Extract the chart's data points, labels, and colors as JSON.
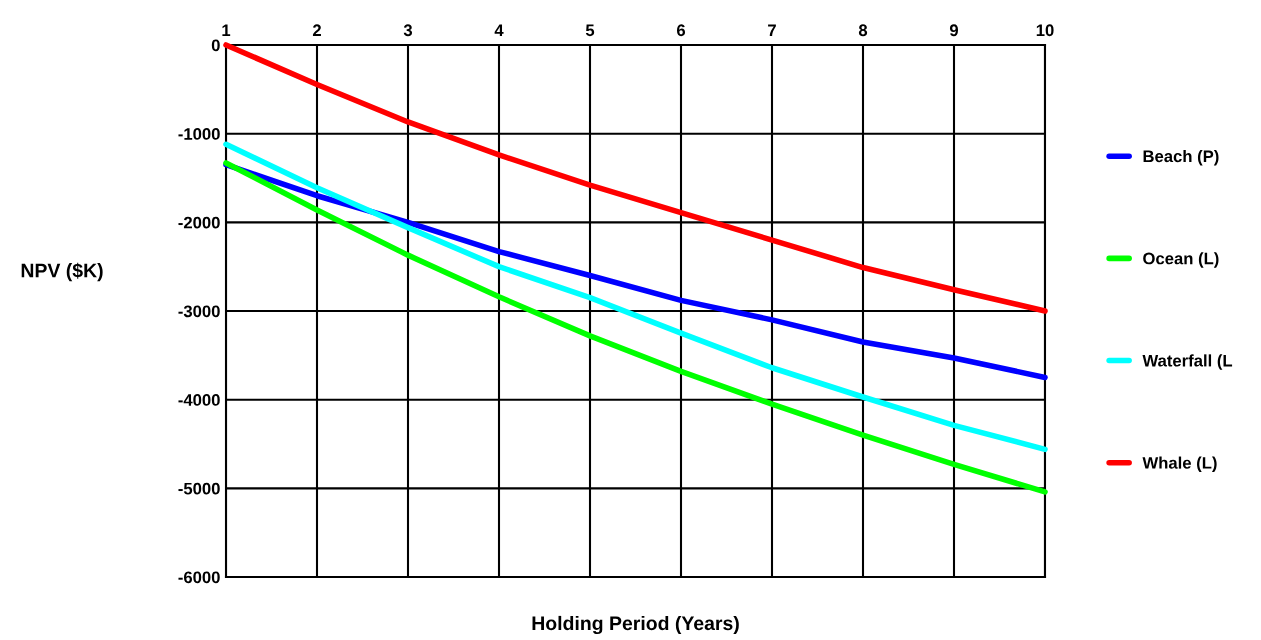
{
  "chart_data": {
    "type": "line",
    "xlabel": "Holding Period (Years)",
    "ylabel": "NPV ($K)",
    "x": [
      1,
      2,
      3,
      4,
      5,
      6,
      7,
      8,
      9,
      10
    ],
    "series": [
      {
        "name": "Beach (P)",
        "color": "#0000ff",
        "values": [
          -1350,
          -1700,
          -2000,
          -2330,
          -2600,
          -2880,
          -3100,
          -3350,
          -3530,
          -3750
        ]
      },
      {
        "name": "Ocean (L)",
        "color": "#00ff00",
        "values": [
          -1330,
          -1860,
          -2370,
          -2840,
          -3280,
          -3680,
          -4050,
          -4400,
          -4730,
          -5040
        ]
      },
      {
        "name": "Waterfall (L",
        "color": "#00ffff",
        "values": [
          -1120,
          -1610,
          -2060,
          -2500,
          -2850,
          -3250,
          -3640,
          -3970,
          -4290,
          -4560
        ]
      },
      {
        "name": "Whale (L)",
        "color": "#ff0000",
        "values": [
          0,
          -445,
          -868,
          -1240,
          -1580,
          -1890,
          -2200,
          -2510,
          -2760,
          -3000
        ]
      }
    ],
    "xlim": [
      1,
      10
    ],
    "xticks": [
      1,
      2,
      3,
      4,
      5,
      6,
      7,
      8,
      9,
      10
    ],
    "ylim": [
      -6000,
      0
    ],
    "yticks": [
      -6000,
      -5000,
      -4000,
      -3000,
      -2000,
      -1000,
      0
    ],
    "grid": true,
    "legend": "right",
    "marker": "none",
    "line_style": "solid"
  }
}
